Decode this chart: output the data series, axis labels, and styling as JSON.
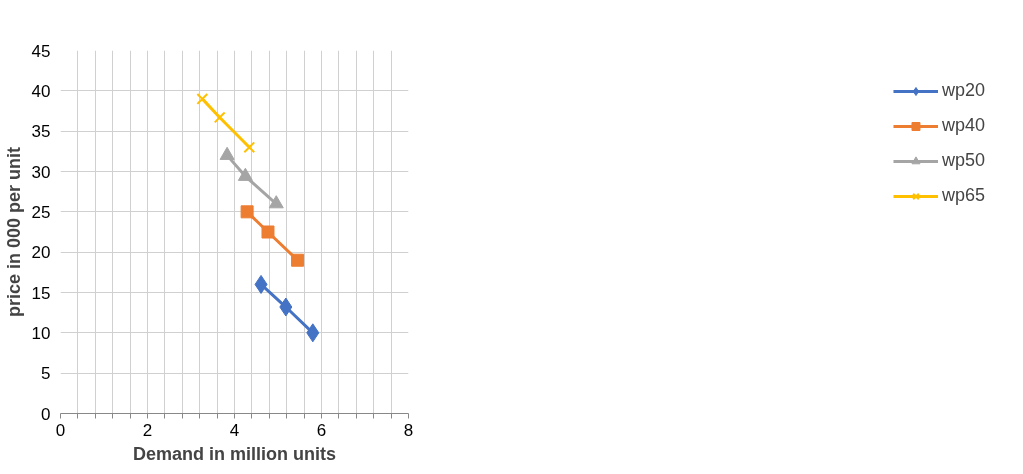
{
  "chart_data": {
    "type": "line",
    "xlabel": "Demand in million units",
    "ylabel": "price in 000 per unit",
    "xlim": [
      0,
      8
    ],
    "xticks": [
      0,
      {
        "value": 0.4,
        "label": null
      },
      {
        "value": 0.8,
        "label": null
      },
      {
        "value": 1.2,
        "label": null
      },
      {
        "value": 1.6,
        "label": null
      },
      2,
      {
        "value": 2.4,
        "label": null
      },
      {
        "value": 2.8,
        "label": null
      },
      {
        "value": 3.2,
        "label": null
      },
      {
        "value": 3.6,
        "label": null
      },
      4,
      {
        "value": 4.4,
        "label": null
      },
      {
        "value": 4.8,
        "label": null
      },
      {
        "value": 5.2,
        "label": null
      },
      {
        "value": 5.6,
        "label": null
      },
      6,
      {
        "value": 6.4,
        "label": null
      },
      {
        "value": 6.8,
        "label": null
      },
      {
        "value": 7.2,
        "label": null
      },
      {
        "value": 7.6,
        "label": null
      },
      8
    ],
    "ylim": [
      0,
      45
    ],
    "yticks": [
      0,
      5,
      10,
      15,
      20,
      25,
      30,
      35,
      40,
      45
    ],
    "grid": true,
    "legend": "right",
    "line_style": "solid",
    "series": [
      {
        "name": "wp20",
        "color": "#4472c4",
        "marker": "diamond",
        "x": [
          4.61,
          5.18,
          5.8
        ],
        "values": [
          16,
          13.2,
          10
        ]
      },
      {
        "name": "wp40",
        "color": "#ed7d31",
        "marker": "square",
        "x": [
          4.29,
          4.77,
          5.45
        ],
        "values": [
          25,
          22.5,
          19
        ]
      },
      {
        "name": "wp50",
        "color": "#a5a5a5",
        "marker": "triangle",
        "x": [
          3.83,
          4.25,
          4.96
        ],
        "values": [
          32,
          29.4,
          26
        ]
      },
      {
        "name": "wp65",
        "color": "#ffc000",
        "marker": "cross",
        "x": [
          3.26,
          3.66,
          4.34
        ],
        "values": [
          39,
          36.7,
          33
        ]
      }
    ]
  }
}
